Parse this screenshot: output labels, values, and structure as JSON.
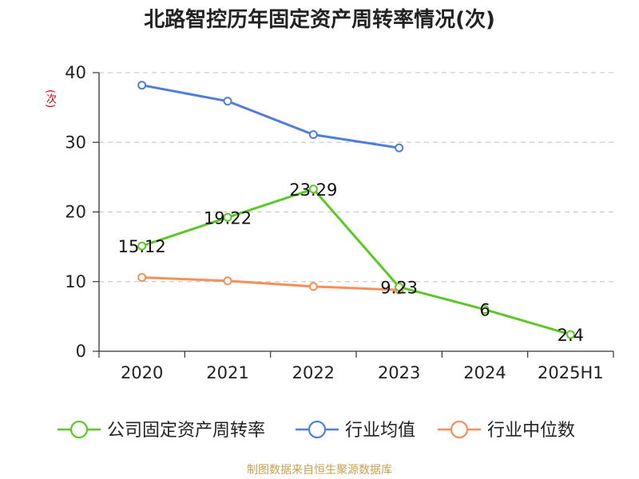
{
  "colors": {
    "series_company": "#5cc828",
    "series_industry_avg": "#4f7fdb",
    "series_industry_median": "#f5905a",
    "source": "#c9a050",
    "ylabel": "#cc0000",
    "grid": "#cccccc"
  },
  "source_text": "制图数据来自恒生聚源数据库",
  "chart_data": {
    "type": "line",
    "title": "北路智控历年固定资产周转率情况(次)",
    "xlabel": "",
    "ylabel": "(次)",
    "categories": [
      "2020",
      "2021",
      "2022",
      "2023",
      "2024",
      "2025H1"
    ],
    "ylim": [
      0,
      40
    ],
    "yticks": [
      0,
      10,
      20,
      30,
      40
    ],
    "grid": "horizontal-dashed",
    "legend_position": "bottom",
    "series": [
      {
        "name": "公司固定资产周转率",
        "values": [
          15.12,
          19.22,
          23.29,
          9.23,
          6,
          2.4
        ],
        "labels": [
          "15.12",
          "19.22",
          "23.29",
          "9.23",
          "6",
          "2.4"
        ]
      },
      {
        "name": "行业均值",
        "values": [
          38.2,
          35.9,
          31.1,
          29.2,
          null,
          null
        ]
      },
      {
        "name": "行业中位数",
        "values": [
          10.6,
          10.1,
          9.3,
          8.8,
          null,
          null
        ]
      }
    ]
  }
}
